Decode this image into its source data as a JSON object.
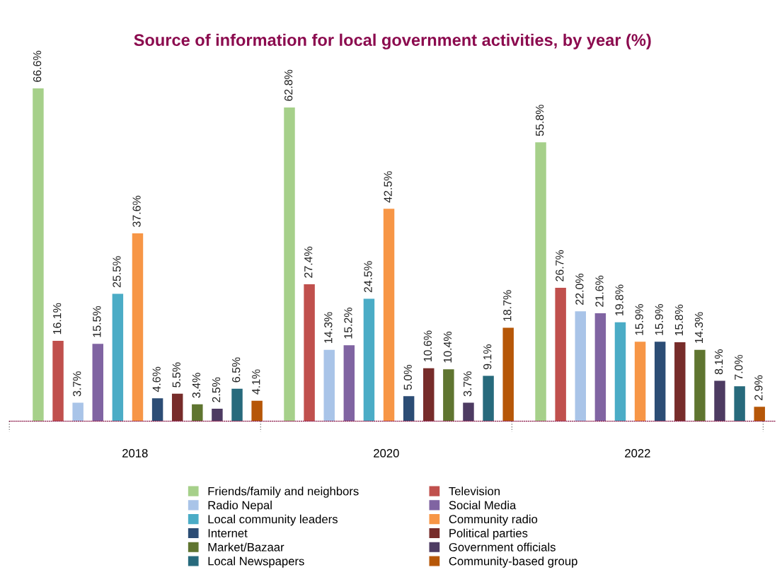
{
  "chart_data": {
    "type": "bar",
    "title": "Source of information for local government activities, by year (%)",
    "categories": [
      "2018",
      "2020",
      "2022"
    ],
    "series": [
      {
        "name": "Friends/family and neighbors",
        "color": "#a6d08a",
        "values": [
          66.6,
          62.8,
          55.8
        ],
        "value_labels": [
          "66.6%",
          "62.8%",
          "55.8%"
        ]
      },
      {
        "name": "Television",
        "color": "#c0504d",
        "values": [
          16.1,
          27.4,
          26.7
        ],
        "value_labels": [
          "16.1%",
          "27.4%",
          "26.7%"
        ]
      },
      {
        "name": "Radio Nepal",
        "color": "#a9c4e8",
        "values": [
          3.7,
          14.3,
          22.0
        ],
        "value_labels": [
          "3.7%",
          "14.3%",
          "22.0%"
        ]
      },
      {
        "name": "Social Media",
        "color": "#8064a2",
        "values": [
          15.5,
          15.2,
          21.6
        ],
        "value_labels": [
          "15.5%",
          "15.2%",
          "21.6%"
        ]
      },
      {
        "name": "Local community leaders",
        "color": "#4bacc6",
        "values": [
          25.5,
          24.5,
          19.8
        ],
        "value_labels": [
          "25.5%",
          "24.5%",
          "19.8%"
        ]
      },
      {
        "name": "Community radio",
        "color": "#f79646",
        "values": [
          37.6,
          42.5,
          15.9
        ],
        "value_labels": [
          "37.6%",
          "42.5%",
          "15.9%"
        ]
      },
      {
        "name": "Internet",
        "color": "#2c4d75",
        "values": [
          4.6,
          5.0,
          15.9
        ],
        "value_labels": [
          "4.6%",
          "5.0%",
          "15.9%"
        ]
      },
      {
        "name": "Political parties",
        "color": "#772c2a",
        "values": [
          5.5,
          10.6,
          15.8
        ],
        "value_labels": [
          "5.5%",
          "10.6%",
          "15.8%"
        ]
      },
      {
        "name": "Market/Bazaar",
        "color": "#5f7530",
        "values": [
          3.4,
          10.4,
          14.3
        ],
        "value_labels": [
          "3.4%",
          "10.4%",
          "14.3%"
        ]
      },
      {
        "name": "Government officials",
        "color": "#4d3b62",
        "values": [
          2.5,
          3.7,
          8.1
        ],
        "value_labels": [
          "2.5%",
          "3.7%",
          "8.1%"
        ]
      },
      {
        "name": "Local Newspapers",
        "color": "#276a7c",
        "values": [
          6.5,
          9.1,
          7.0
        ],
        "value_labels": [
          "6.5%",
          "9.1%",
          "7.0%"
        ]
      },
      {
        "name": "Community-based group",
        "color": "#b65708",
        "values": [
          4.1,
          18.7,
          2.9
        ],
        "value_labels": [
          "4.1%",
          "18.7%",
          "2.9%"
        ]
      }
    ],
    "legend": "bottom",
    "grid": false
  }
}
